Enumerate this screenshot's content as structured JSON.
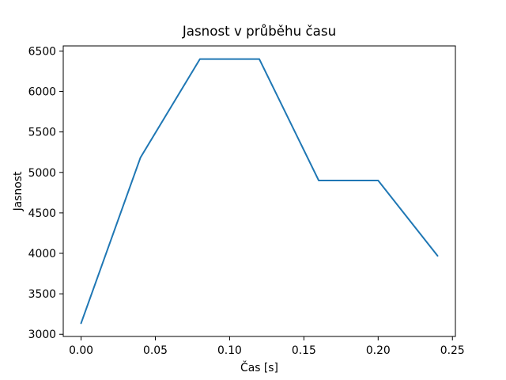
{
  "figure": {
    "background": "#ffffff"
  },
  "chart_data": {
    "type": "line",
    "title": "Jasnost v průběhu času",
    "xlabel": "Čas [s]",
    "ylabel": "Jasnost",
    "x": [
      0.0,
      0.04,
      0.08,
      0.12,
      0.16,
      0.2,
      0.24
    ],
    "series": [
      {
        "name": "Jasnost",
        "values": [
          3136,
          5184,
          6400,
          6400,
          4900,
          4900,
          3969
        ]
      }
    ],
    "xticks": [
      0.0,
      0.05,
      0.1,
      0.15,
      0.2,
      0.25
    ],
    "xtick_labels": [
      "0.00",
      "0.05",
      "0.10",
      "0.15",
      "0.20",
      "0.25"
    ],
    "yticks": [
      3000,
      3500,
      4000,
      4500,
      5000,
      5500,
      6000,
      6500
    ],
    "ytick_labels": [
      "3000",
      "3500",
      "4000",
      "4500",
      "5000",
      "5500",
      "6000",
      "6500"
    ],
    "xlim": [
      -0.012,
      0.252
    ],
    "ylim": [
      2973,
      6563
    ],
    "line_color": "#1f77b4",
    "axis_color": "#000000",
    "grid": false,
    "legend_position": "none",
    "markers": false
  }
}
